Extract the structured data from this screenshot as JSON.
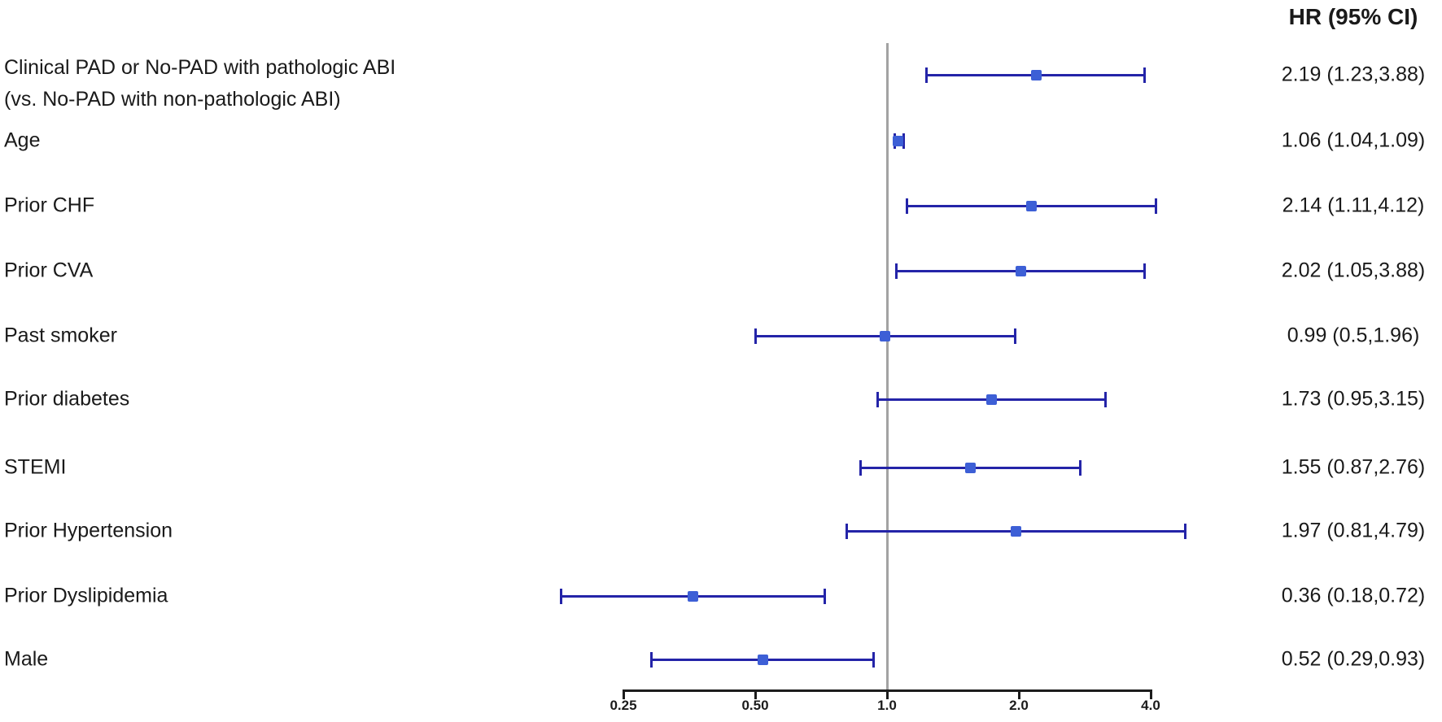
{
  "header": {
    "title": "HR (95% CI)"
  },
  "chart_data": {
    "type": "forest",
    "title": "HR (95% CI)",
    "xscale": "log2",
    "reference_line": 1.0,
    "xticks": [
      {
        "value": 0.25,
        "label": "0.25"
      },
      {
        "value": 0.5,
        "label": "0.50"
      },
      {
        "value": 1.0,
        "label": "1.0"
      },
      {
        "value": 2.0,
        "label": "2.0"
      },
      {
        "value": 4.0,
        "label": "4.0"
      }
    ],
    "xlim": [
      0.25,
      4.0
    ],
    "rows": [
      {
        "label": "Clinical PAD or No-PAD with pathologic ABI",
        "label2": "(vs. No-PAD with non-pathologic ABI)",
        "hr": 2.19,
        "lo": 1.23,
        "hi": 3.88,
        "text": "2.19 (1.23,3.88)"
      },
      {
        "label": "Age",
        "hr": 1.06,
        "lo": 1.04,
        "hi": 1.09,
        "text": "1.06 (1.04,1.09)"
      },
      {
        "label": "Prior CHF",
        "hr": 2.14,
        "lo": 1.11,
        "hi": 4.12,
        "text": "2.14 (1.11,4.12)"
      },
      {
        "label": "Prior CVA",
        "hr": 2.02,
        "lo": 1.05,
        "hi": 3.88,
        "text": "2.02 (1.05,3.88)"
      },
      {
        "label": "Past smoker",
        "hr": 0.99,
        "lo": 0.5,
        "hi": 1.96,
        "text": "0.99 (0.5,1.96)"
      },
      {
        "label": "Prior diabetes",
        "hr": 1.73,
        "lo": 0.95,
        "hi": 3.15,
        "text": "1.73 (0.95,3.15)"
      },
      {
        "label": "STEMI",
        "hr": 1.55,
        "lo": 0.87,
        "hi": 2.76,
        "text": "1.55 (0.87,2.76)"
      },
      {
        "label": "Prior Hypertension",
        "hr": 1.97,
        "lo": 0.81,
        "hi": 4.79,
        "text": "1.97 (0.81,4.79)"
      },
      {
        "label": "Prior Dyslipidemia",
        "hr": 0.36,
        "lo": 0.18,
        "hi": 0.72,
        "text": "0.36 (0.18,0.72)"
      },
      {
        "label": "Male",
        "hr": 0.52,
        "lo": 0.29,
        "hi": 0.93,
        "text": "0.52 (0.29,0.93)"
      }
    ],
    "colors": {
      "ci_line": "#2424a8",
      "marker": "#3d5fd6",
      "reference_line": "#a3a3a3",
      "axis": "#1c1c1c",
      "text": "#1a1a1a"
    }
  }
}
